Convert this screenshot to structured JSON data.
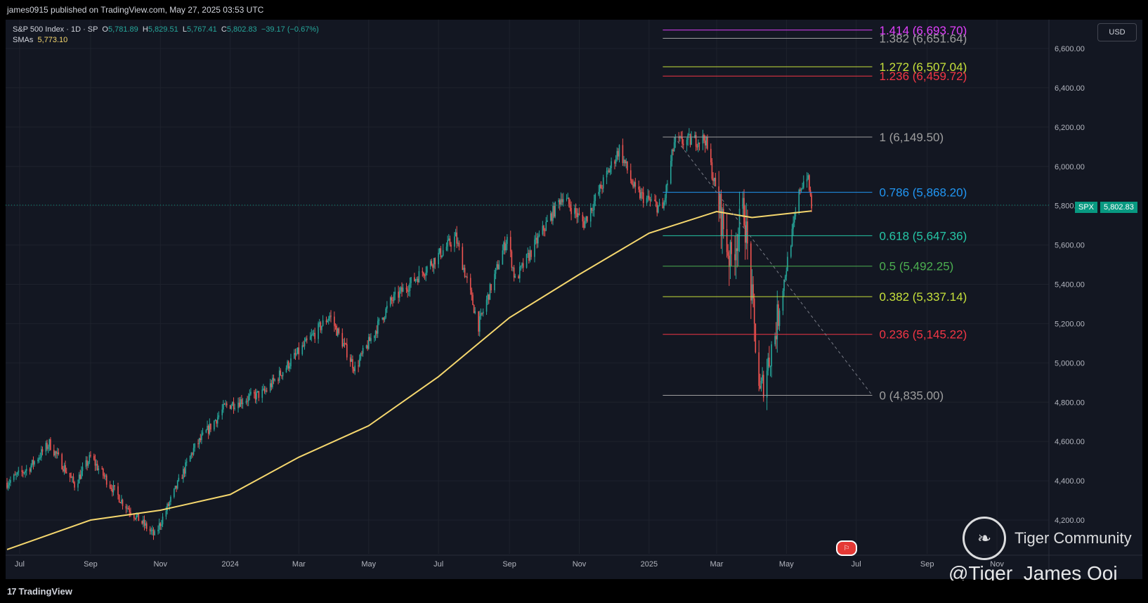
{
  "header": {
    "published": "james0915 published on TradingView.com, May 27, 2025 03:53 UTC"
  },
  "legend": {
    "symbol": "S&P 500 Index · 1D · SP",
    "o_label": "O",
    "o": "5,781.89",
    "h_label": "H",
    "h": "5,829.51",
    "l_label": "L",
    "l": "5,767.41",
    "c_label": "C",
    "c": "5,802.83",
    "change": "−39.17 (−0.67%)",
    "sma_label": "SMAs",
    "sma": "5,773.10"
  },
  "currency": "USD",
  "price_tag": {
    "symbol": "SPX",
    "value": "5,802.83"
  },
  "footer": {
    "brand": "TradingView",
    "brand_mark": "17"
  },
  "watermark": {
    "community": "Tiger Community",
    "handle": "@Tiger_James Ooi"
  },
  "colors": {
    "background": "#131722",
    "up": "#26a69a",
    "down": "#ef5350",
    "sma": "#f5d76e",
    "grid": "#1e222d"
  },
  "chart_data": {
    "type": "candlestick",
    "title": "",
    "xlabel": "",
    "ylabel": "",
    "ylim": [
      4100,
      6750
    ],
    "x_ticks": [
      {
        "label": "Jul",
        "date": "2023-07-01"
      },
      {
        "label": "Sep",
        "date": "2023-09-01"
      },
      {
        "label": "Nov",
        "date": "2023-11-01"
      },
      {
        "label": "2024",
        "date": "2024-01-01"
      },
      {
        "label": "Mar",
        "date": "2024-03-01"
      },
      {
        "label": "May",
        "date": "2024-05-01"
      },
      {
        "label": "Jul",
        "date": "2024-07-01"
      },
      {
        "label": "Sep",
        "date": "2024-09-01"
      },
      {
        "label": "Nov",
        "date": "2024-11-01"
      },
      {
        "label": "2025",
        "date": "2025-01-01"
      },
      {
        "label": "Mar",
        "date": "2025-03-01"
      },
      {
        "label": "May",
        "date": "2025-05-01"
      },
      {
        "label": "Jul",
        "date": "2025-07-01"
      },
      {
        "label": "Sep",
        "date": "2025-09-01"
      },
      {
        "label": "Nov",
        "date": "2025-11-01"
      }
    ],
    "y_ticks": [
      {
        "label": "4,200.00",
        "value": 4200
      },
      {
        "label": "4,400.00",
        "value": 4400
      },
      {
        "label": "4,600.00",
        "value": 4600
      },
      {
        "label": "4,800.00",
        "value": 4800
      },
      {
        "label": "5,000.00",
        "value": 5000
      },
      {
        "label": "5,200.00",
        "value": 5200
      },
      {
        "label": "5,400.00",
        "value": 5400
      },
      {
        "label": "5,600.00",
        "value": 5600
      },
      {
        "label": "5,800.00",
        "value": 5800
      },
      {
        "label": "6,000.00",
        "value": 6000
      },
      {
        "label": "6,200.00",
        "value": 6200
      },
      {
        "label": "6,400.00",
        "value": 6400
      },
      {
        "label": "6,600.00",
        "value": 6600
      }
    ],
    "price_path": [
      [
        "2023-06-20",
        4390
      ],
      [
        "2023-07-10",
        4470
      ],
      [
        "2023-07-27",
        4590
      ],
      [
        "2023-08-18",
        4380
      ],
      [
        "2023-09-01",
        4520
      ],
      [
        "2023-09-29",
        4290
      ],
      [
        "2023-10-27",
        4120
      ],
      [
        "2023-11-30",
        4560
      ],
      [
        "2023-12-28",
        4780
      ],
      [
        "2024-01-31",
        4850
      ],
      [
        "2024-03-28",
        5240
      ],
      [
        "2024-04-19",
        4970
      ],
      [
        "2024-05-20",
        5310
      ],
      [
        "2024-06-20",
        5480
      ],
      [
        "2024-07-16",
        5640
      ],
      [
        "2024-08-05",
        5190
      ],
      [
        "2024-08-30",
        5640
      ],
      [
        "2024-09-06",
        5420
      ],
      [
        "2024-10-17",
        5850
      ],
      [
        "2024-11-05",
        5710
      ],
      [
        "2024-12-06",
        6090
      ],
      [
        "2024-12-20",
        5870
      ],
      [
        "2025-01-13",
        5780
      ],
      [
        "2025-01-23",
        6120
      ],
      [
        "2025-02-19",
        6140
      ],
      [
        "2025-03-13",
        5520
      ],
      [
        "2025-03-25",
        5780
      ],
      [
        "2025-04-08",
        4835
      ],
      [
        "2025-04-21",
        5150
      ],
      [
        "2025-05-13",
        5890
      ],
      [
        "2025-05-19",
        5960
      ],
      [
        "2025-05-23",
        5802.83
      ]
    ],
    "sma": {
      "label": "SMAs",
      "points": [
        [
          "2023-06-20",
          4050
        ],
        [
          "2023-09-01",
          4200
        ],
        [
          "2023-11-01",
          4250
        ],
        [
          "2024-01-01",
          4330
        ],
        [
          "2024-03-01",
          4520
        ],
        [
          "2024-05-01",
          4680
        ],
        [
          "2024-07-01",
          4930
        ],
        [
          "2024-09-01",
          5230
        ],
        [
          "2024-11-01",
          5450
        ],
        [
          "2025-01-01",
          5660
        ],
        [
          "2025-03-01",
          5770
        ],
        [
          "2025-04-01",
          5740
        ],
        [
          "2025-05-23",
          5773.1
        ]
      ]
    },
    "fibonacci": {
      "start_date": "2025-01-13",
      "end_date": "2025-07-15",
      "levels": [
        {
          "label": "1.414 (6,693.70)",
          "value": 6693.7,
          "color": "#e040fb"
        },
        {
          "label": "1.382 (6,651.64)",
          "value": 6651.64,
          "color": "#9e9e9e"
        },
        {
          "label": "1.272 (6,507.04)",
          "value": 6507.04,
          "color": "#c6e03b"
        },
        {
          "label": "1.236 (6,459.72)",
          "value": 6459.72,
          "color": "#f23645"
        },
        {
          "label": "1 (6,149.50)",
          "value": 6149.5,
          "color": "#9e9e9e"
        },
        {
          "label": "0.786 (5,868.20)",
          "value": 5868.2,
          "color": "#2196f3"
        },
        {
          "label": "0.618 (5,647.36)",
          "value": 5647.36,
          "color": "#26c6a6"
        },
        {
          "label": "0.5 (5,492.25)",
          "value": 5492.25,
          "color": "#4caf50"
        },
        {
          "label": "0.382 (5,337.14)",
          "value": 5337.14,
          "color": "#c6e03b"
        },
        {
          "label": "0.236 (5,145.22)",
          "value": 5145.22,
          "color": "#f23645"
        },
        {
          "label": "0 (4,835.00)",
          "value": 4835.0,
          "color": "#9e9e9e"
        }
      ],
      "trendline": [
        [
          "2025-01-23",
          6149.5
        ],
        [
          "2025-07-15",
          4835.0
        ]
      ]
    },
    "last_price": 5802.83
  }
}
